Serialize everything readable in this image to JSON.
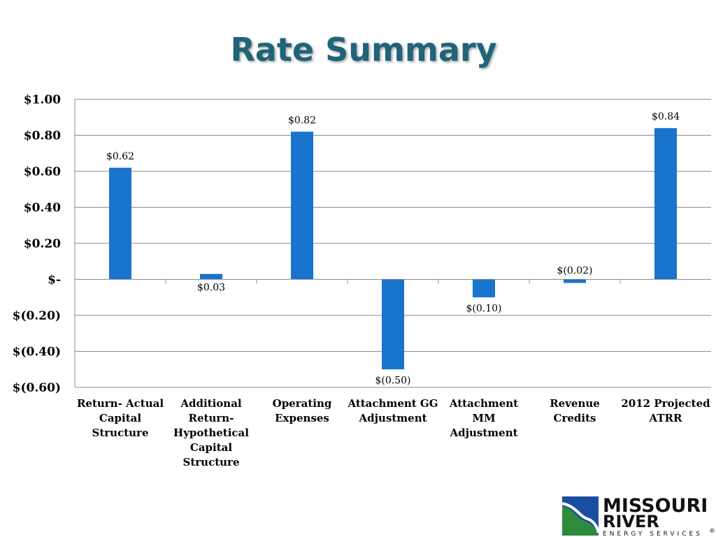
{
  "chart_data": {
    "type": "bar",
    "title": "Rate Summary",
    "xlabel": "",
    "ylabel": "",
    "ylim": [
      -0.6,
      1.0
    ],
    "yticks": [
      1.0,
      0.8,
      0.6,
      0.4,
      0.2,
      0,
      -0.2,
      -0.4,
      -0.6
    ],
    "ytick_labels": [
      "$1.00",
      "$0.80",
      "$0.60",
      "$0.40",
      "$0.20",
      "$-",
      "$(0.20)",
      "$(0.40)",
      "$(0.60)"
    ],
    "categories": [
      [
        "Return- Actual",
        "Capital",
        "Structure"
      ],
      [
        "Additional",
        "Return-",
        "Hypothetical",
        "Capital",
        "Structure"
      ],
      [
        "Operating",
        "Expenses"
      ],
      [
        "Attachment GG",
        "Adjustment"
      ],
      [
        "Attachment",
        "MM",
        "Adjustment"
      ],
      [
        "Revenue",
        "Credits"
      ],
      [
        "2012 Projected",
        "ATRR"
      ]
    ],
    "values": [
      0.62,
      0.03,
      0.82,
      -0.5,
      -0.1,
      -0.02,
      0.84
    ],
    "data_labels": [
      "$0.62",
      "$0.03",
      "$0.82",
      "$(0.50)",
      "$(0.10)",
      "$(0.02)",
      "$0.84"
    ],
    "grid": true,
    "bar_color": "#1874cd"
  },
  "logo": {
    "word1": "MISSOURI",
    "word2": "RIVER",
    "sub": "ENERGY SERVICES",
    "mark": "®",
    "blue": "#1a4fa0",
    "green": "#2e8b3c"
  }
}
